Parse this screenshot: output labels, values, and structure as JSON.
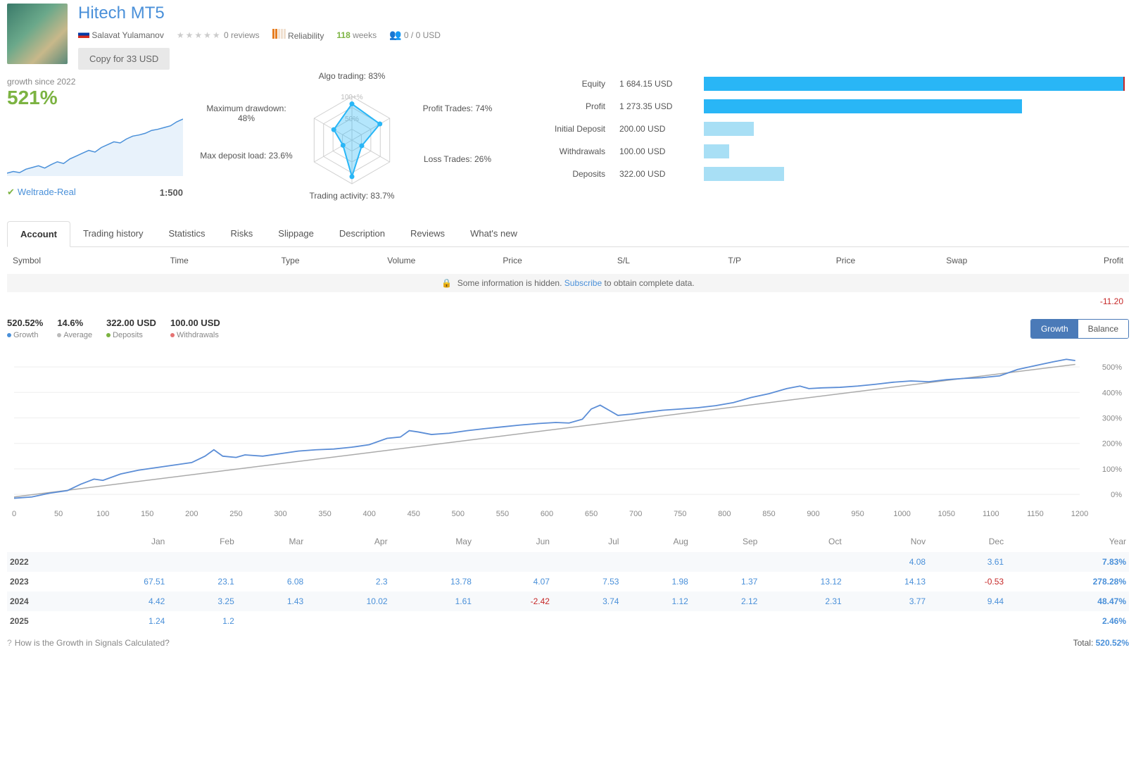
{
  "header": {
    "title": "Hitech MT5",
    "author": "Salavat Yulamanov",
    "reviews": "0 reviews",
    "reliability_label": "Reliability",
    "reliability_bars": [
      "#e67e22",
      "#e67e22",
      "#f0e0d0",
      "#f0e0d0",
      "#f0e0d0"
    ],
    "weeks": "118",
    "weeks_label": "weeks",
    "subscribers": "0 / 0 USD",
    "copy_btn": "Copy for 33 USD"
  },
  "growth": {
    "label": "growth since 2022",
    "value": "521%",
    "broker": "Weltrade-Real",
    "leverage": "1:500",
    "sparkline_color": "#4a90d9",
    "sparkline_fill": "#e8f2fb",
    "sparkline": [
      5,
      8,
      6,
      12,
      15,
      18,
      14,
      20,
      25,
      22,
      30,
      35,
      40,
      45,
      42,
      50,
      55,
      60,
      58,
      65,
      70,
      72,
      75,
      80,
      82,
      85,
      88,
      95,
      100
    ]
  },
  "radar": {
    "labels": {
      "algo": "Algo trading: 83%",
      "profit_trades": "Profit Trades: 74%",
      "loss_trades": "Loss Trades: 26%",
      "activity": "Trading activity: 83.7%",
      "max_load": "Max deposit load: 23.6%",
      "max_dd": "Maximum drawdown: 48%"
    },
    "values": [
      83,
      74,
      26,
      83.7,
      23.6,
      48
    ],
    "ring_labels": [
      "50%",
      "100+%"
    ],
    "line_color": "#29b6f6",
    "fill_color": "rgba(41,182,246,0.35)",
    "grid_color": "#d0d0d0"
  },
  "stats": {
    "max_bar": 1700,
    "rows": [
      {
        "label": "Equity",
        "value": "1 684.15 USD",
        "bar": 1684.15,
        "color": "#29b6f6",
        "marker": true
      },
      {
        "label": "Profit",
        "value": "1 273.35 USD",
        "bar": 1273.35,
        "color": "#29b6f6"
      },
      {
        "label": "Initial Deposit",
        "value": "200.00 USD",
        "bar": 200,
        "color": "#a8dff5"
      },
      {
        "label": "Withdrawals",
        "value": "100.00 USD",
        "bar": 100,
        "color": "#a8dff5"
      },
      {
        "label": "Deposits",
        "value": "322.00 USD",
        "bar": 322,
        "color": "#a8dff5"
      }
    ]
  },
  "tabs": [
    "Account",
    "Trading history",
    "Statistics",
    "Risks",
    "Slippage",
    "Description",
    "Reviews",
    "What's new"
  ],
  "active_tab": 0,
  "table": {
    "columns": [
      "Symbol",
      "Time",
      "Type",
      "Volume",
      "Price",
      "S/L",
      "T/P",
      "Price",
      "Swap",
      "Profit"
    ],
    "hidden_prefix": "Some information is hidden.",
    "hidden_link": "Subscribe",
    "hidden_suffix": "to obtain complete data.",
    "loss": "-11.20"
  },
  "chart_legend": [
    {
      "value": "520.52%",
      "label": "Growth",
      "dot": "#4a90d9"
    },
    {
      "value": "14.6%",
      "label": "Average",
      "dot": "#bbbbbb"
    },
    {
      "value": "322.00 USD",
      "label": "Deposits",
      "dot": "#7cb342"
    },
    {
      "value": "100.00 USD",
      "label": "Withdrawals",
      "dot": "#e57373"
    }
  ],
  "toggle": {
    "growth": "Growth",
    "balance": "Balance",
    "active": "growth"
  },
  "main_chart": {
    "line_color": "#5b8dd6",
    "trend_color": "#aaaaaa",
    "grid_color": "#eeeeee",
    "x_ticks": [
      0,
      50,
      100,
      150,
      200,
      250,
      300,
      350,
      400,
      450,
      500,
      550,
      600,
      650,
      700,
      750,
      800,
      850,
      900,
      950,
      1000,
      1050,
      1100,
      1150,
      1200
    ],
    "y_ticks": [
      "0%",
      "100%",
      "200%",
      "300%",
      "400%",
      "500%"
    ],
    "y_values": [
      0,
      100,
      200,
      300,
      400,
      500
    ],
    "xlim": [
      0,
      1200
    ],
    "ylim": [
      -30,
      550
    ],
    "data": [
      [
        0,
        -15
      ],
      [
        20,
        -10
      ],
      [
        40,
        5
      ],
      [
        60,
        15
      ],
      [
        75,
        40
      ],
      [
        90,
        60
      ],
      [
        100,
        55
      ],
      [
        120,
        80
      ],
      [
        140,
        95
      ],
      [
        160,
        105
      ],
      [
        180,
        115
      ],
      [
        200,
        125
      ],
      [
        215,
        150
      ],
      [
        225,
        175
      ],
      [
        235,
        150
      ],
      [
        250,
        145
      ],
      [
        260,
        155
      ],
      [
        280,
        150
      ],
      [
        300,
        160
      ],
      [
        320,
        170
      ],
      [
        340,
        175
      ],
      [
        360,
        178
      ],
      [
        380,
        185
      ],
      [
        400,
        195
      ],
      [
        420,
        220
      ],
      [
        435,
        225
      ],
      [
        445,
        250
      ],
      [
        455,
        245
      ],
      [
        470,
        235
      ],
      [
        490,
        240
      ],
      [
        510,
        250
      ],
      [
        530,
        258
      ],
      [
        550,
        265
      ],
      [
        570,
        272
      ],
      [
        590,
        278
      ],
      [
        610,
        282
      ],
      [
        625,
        280
      ],
      [
        640,
        295
      ],
      [
        650,
        335
      ],
      [
        660,
        350
      ],
      [
        670,
        330
      ],
      [
        680,
        310
      ],
      [
        695,
        315
      ],
      [
        710,
        322
      ],
      [
        730,
        330
      ],
      [
        750,
        335
      ],
      [
        770,
        340
      ],
      [
        790,
        348
      ],
      [
        810,
        360
      ],
      [
        830,
        380
      ],
      [
        850,
        395
      ],
      [
        870,
        415
      ],
      [
        885,
        425
      ],
      [
        895,
        415
      ],
      [
        910,
        418
      ],
      [
        930,
        420
      ],
      [
        950,
        425
      ],
      [
        970,
        432
      ],
      [
        990,
        440
      ],
      [
        1010,
        445
      ],
      [
        1030,
        442
      ],
      [
        1050,
        450
      ],
      [
        1070,
        455
      ],
      [
        1090,
        458
      ],
      [
        1110,
        465
      ],
      [
        1130,
        490
      ],
      [
        1150,
        505
      ],
      [
        1170,
        520
      ],
      [
        1185,
        530
      ],
      [
        1195,
        525
      ]
    ],
    "trend": [
      [
        0,
        -10
      ],
      [
        1195,
        510
      ]
    ]
  },
  "monthly": {
    "months": [
      "Jan",
      "Feb",
      "Mar",
      "Apr",
      "May",
      "Jun",
      "Jul",
      "Aug",
      "Sep",
      "Oct",
      "Nov",
      "Dec",
      "Year"
    ],
    "rows": [
      {
        "year": "2022",
        "cells": [
          "",
          "",
          "",
          "",
          "",
          "",
          "",
          "",
          "",
          "",
          "4.08",
          "3.61",
          "7.83%"
        ],
        "neg": []
      },
      {
        "year": "2023",
        "cells": [
          "67.51",
          "23.1",
          "6.08",
          "2.3",
          "13.78",
          "4.07",
          "7.53",
          "1.98",
          "1.37",
          "13.12",
          "14.13",
          "-0.53",
          "278.28%"
        ],
        "neg": [
          11
        ]
      },
      {
        "year": "2024",
        "cells": [
          "4.42",
          "3.25",
          "1.43",
          "10.02",
          "1.61",
          "-2.42",
          "3.74",
          "1.12",
          "2.12",
          "2.31",
          "3.77",
          "9.44",
          "48.47%"
        ],
        "neg": [
          5
        ]
      },
      {
        "year": "2025",
        "cells": [
          "1.24",
          "1.2",
          "",
          "",
          "",
          "",
          "",
          "",
          "",
          "",
          "",
          "",
          "2.46%"
        ],
        "neg": []
      }
    ]
  },
  "footer": {
    "link": "How is the Growth in Signals Calculated?",
    "total_label": "Total:",
    "total_value": "520.52%"
  }
}
